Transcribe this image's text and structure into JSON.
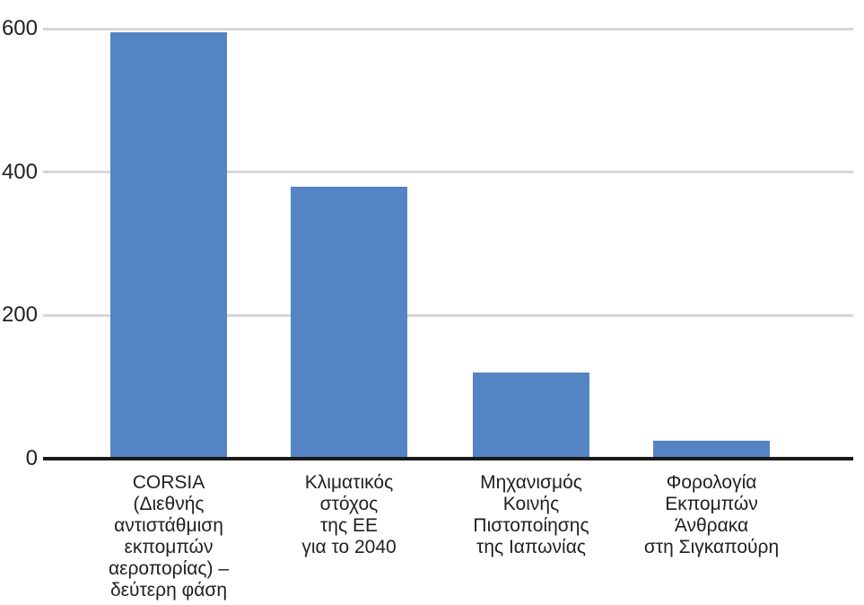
{
  "chart_data": {
    "type": "bar",
    "title": "",
    "xlabel": "",
    "ylabel": "",
    "categories": [
      "CORSIA (Διεθνής αντιστάθμιση εκπομπών αεροπορίας) – δεύτερη φάση",
      "Κλιματικός στόχος της ΕΕ για το 2040",
      "Μηχανισμός Κοινής Πιστοποίησης της Ιαπωνίας",
      "Φορολογία Εκπομπών Άνθρακα στη Σιγκαπούρη"
    ],
    "categories_multiline": [
      [
        "CORSIA",
        "(Διεθνής",
        "αντιστάθμιση",
        "εκπομπών",
        "αεροπορίας) –",
        "δεύτερη φάση"
      ],
      [
        "Κλιματικός",
        "στόχος",
        "της ΕΕ",
        "για το 2040"
      ],
      [
        "Μηχανισμός",
        "Κοινής",
        "Πιστοποίησης",
        "της Ιαπωνίας"
      ],
      [
        "Φορολογία",
        "Εκπομπών",
        "Άνθρακα",
        "στη Σιγκαπούρη"
      ]
    ],
    "values": [
      595,
      380,
      120,
      25
    ],
    "ylim": [
      0,
      600
    ],
    "yticks": [
      0,
      200,
      400,
      600
    ],
    "grid": true,
    "legend": false,
    "colors": {
      "bar": "#5484C3",
      "gridline": "#D6D6D6",
      "axis": "#1A1A1A",
      "text": "#231F20"
    }
  }
}
